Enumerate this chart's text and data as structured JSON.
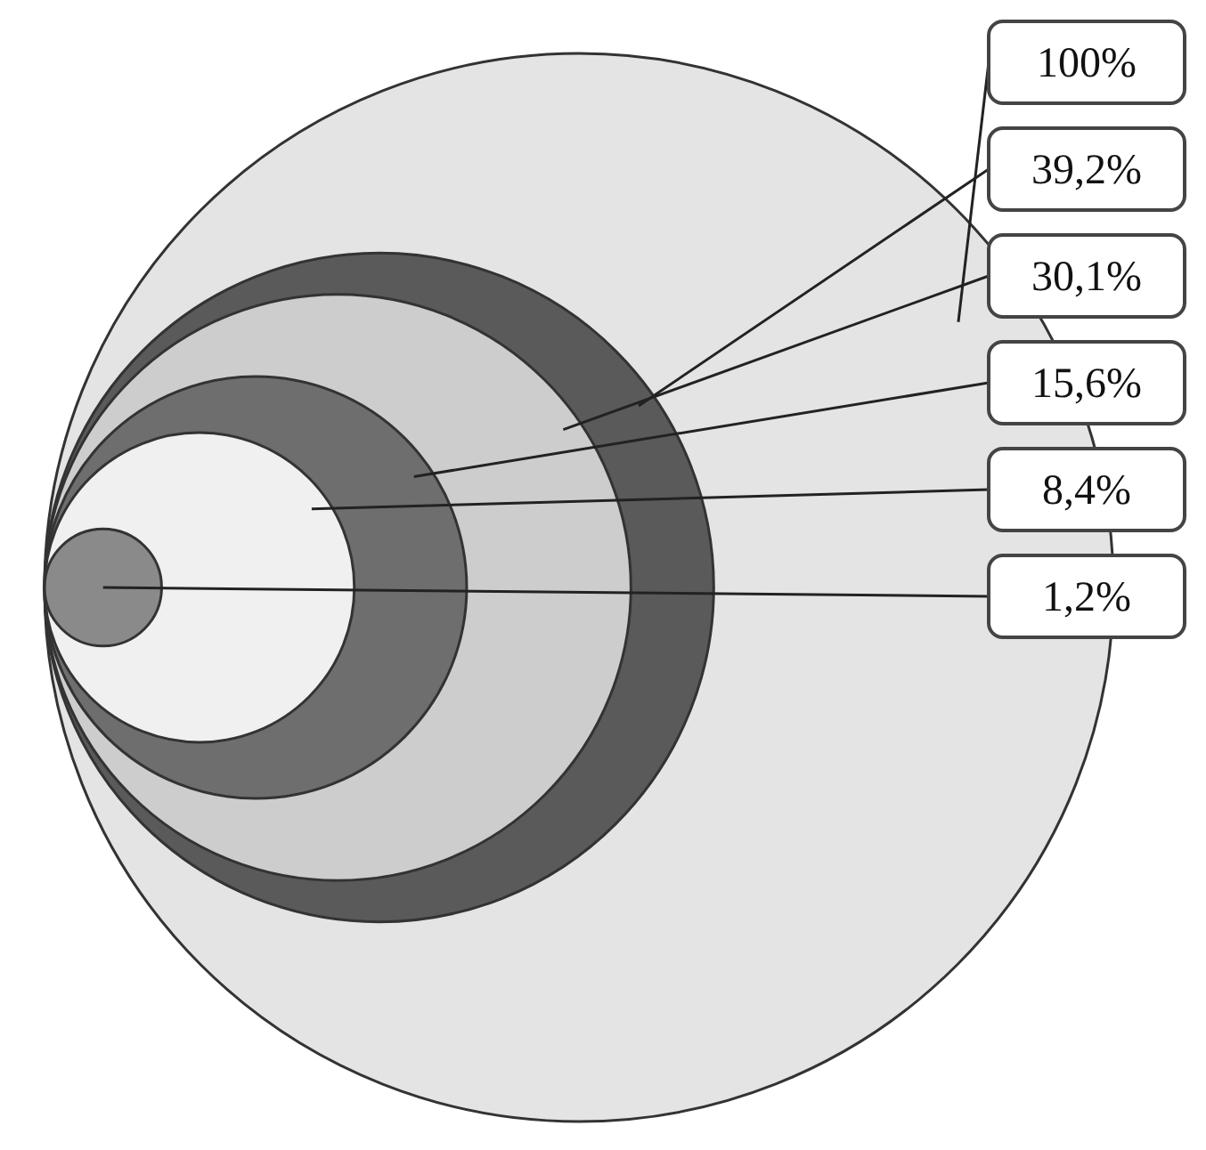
{
  "chart_data": {
    "type": "other",
    "values": [
      100,
      39.2,
      30.1,
      15.6,
      8.4,
      1.2
    ],
    "value_labels": [
      "100%",
      "39,2%",
      "30,1%",
      "15,6%",
      "8,4%",
      "1,2%"
    ],
    "colors": [
      "#e4e4e4",
      "#5a5a5a",
      "#cdcdcd",
      "#6e6e6e",
      "#f0f0f0",
      "#8a8a8a"
    ]
  }
}
